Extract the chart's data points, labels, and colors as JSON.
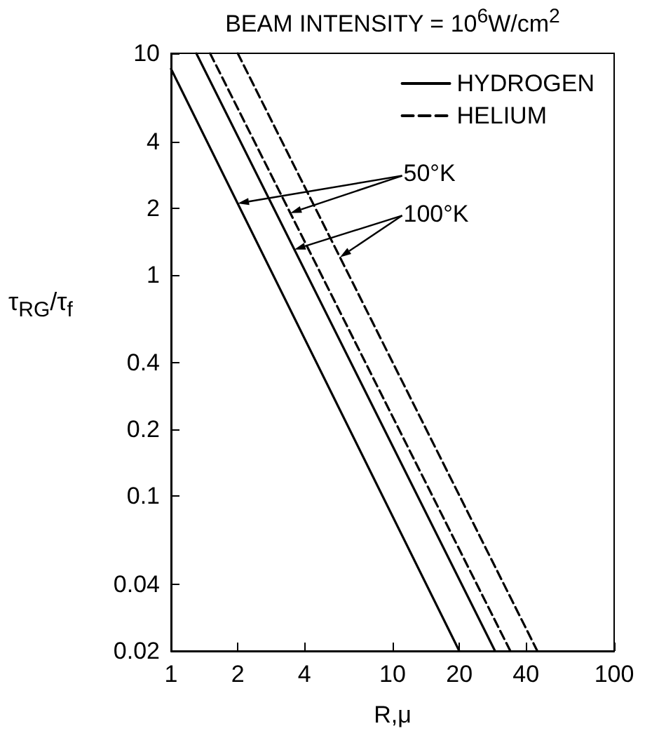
{
  "chart_data": {
    "type": "line",
    "title": "BEAM INTENSITY = 10$^{6}$W/cm$^{2}$",
    "xlabel": "R,μ",
    "ylabel": "τ$_{RG}$/τ$_{f}$",
    "log": "xy",
    "grid": false,
    "legend": "top right",
    "marker": "none",
    "xlim": [
      1,
      100
    ],
    "xticks": [
      1,
      2,
      4,
      10,
      20,
      40,
      100
    ],
    "ylim": [
      0.02,
      10
    ],
    "yticks": [
      0.02,
      0.04,
      0.1,
      0.2,
      0.4,
      1,
      2,
      4,
      10
    ],
    "annotations": [
      {
        "text": "50°K",
        "x": 2,
        "y": 2.1
      },
      {
        "text": "100°K",
        "x": 3.6,
        "y": 1.3
      }
    ],
    "series": [
      {
        "name": "HYDROGEN",
        "color": "#000000",
        "line_style": "solid",
        "x": [
          1,
          20
        ],
        "values": [
          8.5,
          0.02
        ]
      },
      {
        "color": "#000000",
        "line_style": "solid",
        "x": [
          1.3,
          29
        ],
        "values": [
          10,
          0.02
        ]
      },
      {
        "name": "HELIUM",
        "color": "#000000",
        "line_style": "dashed",
        "x": [
          1.5,
          34
        ],
        "values": [
          10,
          0.02
        ]
      },
      {
        "color": "#000000",
        "line_style": "dashed",
        "x": [
          2,
          45
        ],
        "values": [
          10,
          0.02
        ]
      }
    ]
  }
}
